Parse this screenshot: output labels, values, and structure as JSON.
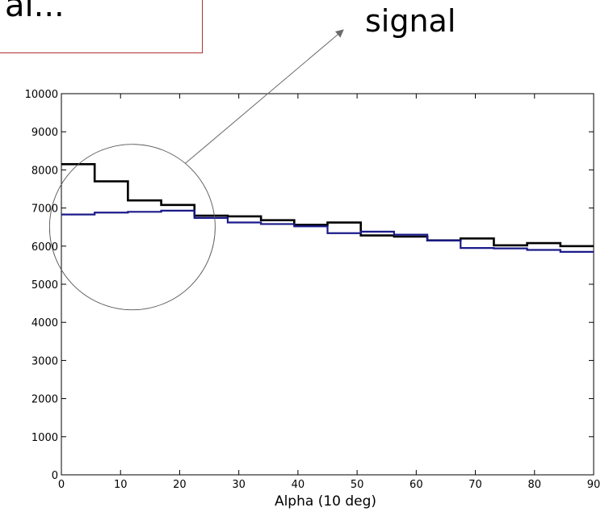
{
  "callout": {
    "text": "al..."
  },
  "annotation": {
    "text": "signal"
  },
  "chart_data": {
    "type": "line",
    "title": "",
    "xlabel": "Alpha (10 deg)",
    "ylabel": "",
    "xlim": [
      0,
      90
    ],
    "ylim": [
      0,
      10000
    ],
    "xticks": [
      0,
      10,
      20,
      30,
      40,
      50,
      60,
      70,
      80,
      90
    ],
    "yticks": [
      0,
      1000,
      2000,
      3000,
      4000,
      5000,
      6000,
      7000,
      8000,
      9000,
      10000
    ],
    "step": true,
    "bin_edges": [
      0,
      5.625,
      11.25,
      16.875,
      22.5,
      28.125,
      33.75,
      39.375,
      45,
      50.625,
      56.25,
      61.875,
      67.5,
      73.125,
      78.75,
      84.375,
      90
    ],
    "series": [
      {
        "color": "#000000",
        "values": [
          8150,
          7700,
          7200,
          7080,
          6800,
          6780,
          6680,
          6560,
          6620,
          6280,
          6250,
          6150,
          6200,
          6020,
          6080,
          6000
        ]
      },
      {
        "color": "#1a1a8a",
        "values": [
          6830,
          6880,
          6900,
          6930,
          6740,
          6620,
          6580,
          6520,
          6340,
          6380,
          6300,
          6150,
          5950,
          5940,
          5900,
          5850
        ]
      }
    ],
    "annotations": [
      {
        "type": "circle",
        "center": [
          12,
          6500
        ],
        "radius_x": 14
      }
    ],
    "grid": false
  }
}
